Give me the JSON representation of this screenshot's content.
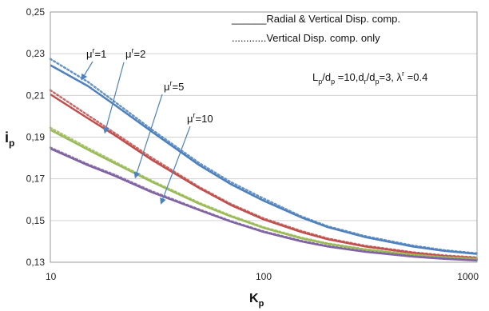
{
  "chart_data": {
    "type": "line",
    "x_scale": "log",
    "xlim": [
      10,
      1000
    ],
    "ylim": [
      0.13,
      0.25
    ],
    "x_ticks": [
      "10",
      "100",
      "1000"
    ],
    "y_ticks": [
      "0,13",
      "0,15",
      "0,17",
      "0,19",
      "0,21",
      "0,23",
      "0,25"
    ],
    "xlabel": {
      "main": "K",
      "sub": "p"
    },
    "ylabel": {
      "main": "i",
      "sub": "p"
    },
    "grid": "horizontal",
    "legend": {
      "placement": "top-right",
      "solid_label": "______Radial  & Vertical Disp. comp.",
      "dotted_label": "............Vertical Disp. comp. only"
    },
    "params_text": {
      "L": "L",
      "p1": "p",
      "slash1": "/d",
      "p2": "p",
      "mid1": " =10,d",
      "r": "r",
      "slash2": "/d",
      "p3": "p",
      "mid2": "=3, λ",
      "rr": "r",
      "end": " =0.4"
    },
    "x": [
      10,
      15,
      20,
      30,
      50,
      70,
      100,
      150,
      200,
      300,
      500,
      700,
      1000
    ],
    "series": [
      {
        "name": "μr=1",
        "mu": "μ",
        "sup": "r",
        "val": "=1",
        "color": "#4F81BD",
        "solid": [
          0.2245,
          0.2145,
          0.2055,
          0.1925,
          0.1765,
          0.1675,
          0.1595,
          0.1515,
          0.1468,
          0.142,
          0.1375,
          0.1355,
          0.134
        ],
        "dotted": [
          0.2275,
          0.2165,
          0.207,
          0.1935,
          0.1775,
          0.1685,
          0.1605,
          0.152,
          0.1472,
          0.1425,
          0.138,
          0.1358,
          0.1343
        ]
      },
      {
        "name": "μr=2",
        "mu": "μ",
        "sup": "r",
        "val": "=2",
        "color": "#C0504D",
        "solid": [
          0.2105,
          0.199,
          0.191,
          0.179,
          0.1655,
          0.1575,
          0.1505,
          0.1445,
          0.141,
          0.1375,
          0.1345,
          0.133,
          0.132
        ],
        "dotted": [
          0.2125,
          0.2005,
          0.192,
          0.18,
          0.166,
          0.158,
          0.151,
          0.145,
          0.1414,
          0.1379,
          0.1348,
          0.1333,
          0.1323
        ]
      },
      {
        "name": "μr=5",
        "mu": "μ",
        "sup": "r",
        "val": "=5",
        "color": "#9BBB59",
        "solid": [
          0.1935,
          0.184,
          0.1775,
          0.1685,
          0.158,
          0.152,
          0.1465,
          0.1415,
          0.1388,
          0.136,
          0.1335,
          0.1323,
          0.1315
        ],
        "dotted": [
          0.1945,
          0.1848,
          0.1782,
          0.169,
          0.1585,
          0.1524,
          0.1468,
          0.1418,
          0.139,
          0.1362,
          0.1337,
          0.1325,
          0.1317
        ]
      },
      {
        "name": "μr=10",
        "mu": "μ",
        "sup": "r",
        "val": "=10",
        "color": "#8064A2",
        "solid": [
          0.1845,
          0.1765,
          0.1715,
          0.1635,
          0.155,
          0.1495,
          0.1445,
          0.14,
          0.1375,
          0.135,
          0.1327,
          0.1316,
          0.1308
        ],
        "dotted": [
          0.185,
          0.177,
          0.172,
          0.164,
          0.1553,
          0.1498,
          0.1448,
          0.1403,
          0.1378,
          0.1352,
          0.1329,
          0.1318,
          0.131
        ]
      }
    ],
    "annotations": [
      {
        "series": 0,
        "point_x": 14,
        "point_y": 0.2175
      },
      {
        "series": 1,
        "point_x": 18,
        "point_y": 0.192
      },
      {
        "series": 2,
        "point_x": 25,
        "point_y": 0.1705
      },
      {
        "series": 3,
        "point_x": 33,
        "point_y": 0.158
      }
    ]
  }
}
